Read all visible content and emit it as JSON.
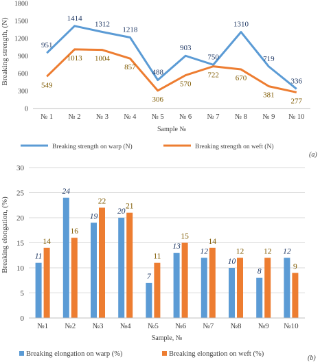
{
  "colors": {
    "warp": "#5b9bd5",
    "weft": "#ed7d31",
    "grid": "#d9d9d9",
    "text": "#404040",
    "warp_label": "#1f3864",
    "weft_label": "#7f5a00"
  },
  "chart_data": [
    {
      "type": "line",
      "panel_label": "(a)",
      "categories": [
        "№ 1",
        "№ 2",
        "№ 3",
        "№ 4",
        "№ 5",
        "№ 6",
        "№ 7",
        "№ 8",
        "№ 9",
        "№ 10"
      ],
      "series": [
        {
          "name": "Breaking strength on warp (N)",
          "values": [
            951,
            1414,
            1312,
            1218,
            488,
            903,
            750,
            1310,
            719,
            336
          ]
        },
        {
          "name": "Breaking strength on weft (N)",
          "values": [
            549,
            1013,
            1004,
            857,
            306,
            570,
            722,
            670,
            381,
            277
          ]
        }
      ],
      "xlabel": "Sample №",
      "ylabel": "Breaking strength, (N)",
      "ylim": [
        0,
        1800
      ],
      "yticks": [
        "0",
        "300",
        "600",
        "900",
        "1200",
        "1500",
        "1800"
      ],
      "grid": false,
      "legend_position": "bottom"
    },
    {
      "type": "bar",
      "panel_label": "(b)",
      "categories": [
        "№1",
        "№2",
        "№3",
        "№4",
        "№5",
        "№6",
        "№7",
        "№8",
        "№9",
        "№10"
      ],
      "series": [
        {
          "name": "Breaking elongation on warp (%)",
          "values": [
            11,
            24,
            19,
            20,
            7,
            13,
            12,
            10,
            8,
            12
          ]
        },
        {
          "name": "Breaking elongation on weft (%)",
          "values": [
            14,
            16,
            22,
            21,
            11,
            15,
            14,
            12,
            12,
            9
          ]
        }
      ],
      "xlabel": "Sample, №",
      "ylabel": "Breaking elongation, (%)",
      "ylim": [
        0,
        30
      ],
      "yticks": [
        "0",
        "5",
        "10",
        "15",
        "20",
        "25",
        "30"
      ],
      "grid": true,
      "legend_position": "bottom"
    }
  ]
}
